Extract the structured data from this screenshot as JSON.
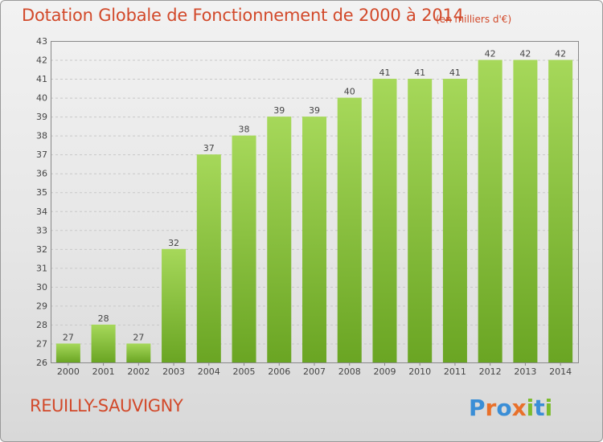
{
  "header": {
    "title": "Dotation Globale de Fonctionnement de 2000 à 2014",
    "subtitle": "(en milliers d'€)"
  },
  "footer": {
    "place": "REUILLY-SAUVIGNY",
    "brand": "Proxiti"
  },
  "colors": {
    "title": "#d2492a",
    "bar_light": "#a6d85a",
    "bar_dark": "#6aa523",
    "grid": "#c8c8c8"
  },
  "chart_data": {
    "type": "bar",
    "categories": [
      "2000",
      "2001",
      "2002",
      "2003",
      "2004",
      "2005",
      "2006",
      "2007",
      "2008",
      "2009",
      "2010",
      "2011",
      "2012",
      "2013",
      "2014"
    ],
    "values": [
      27,
      28,
      27,
      32,
      37,
      38,
      39,
      39,
      40,
      41,
      41,
      41,
      42,
      42,
      42
    ],
    "ylim": [
      26,
      43
    ],
    "yticks": [
      26,
      27,
      28,
      29,
      30,
      31,
      32,
      33,
      34,
      35,
      36,
      37,
      38,
      39,
      40,
      41,
      42,
      43
    ],
    "grid": "horizontal dashed",
    "legend": "none"
  }
}
